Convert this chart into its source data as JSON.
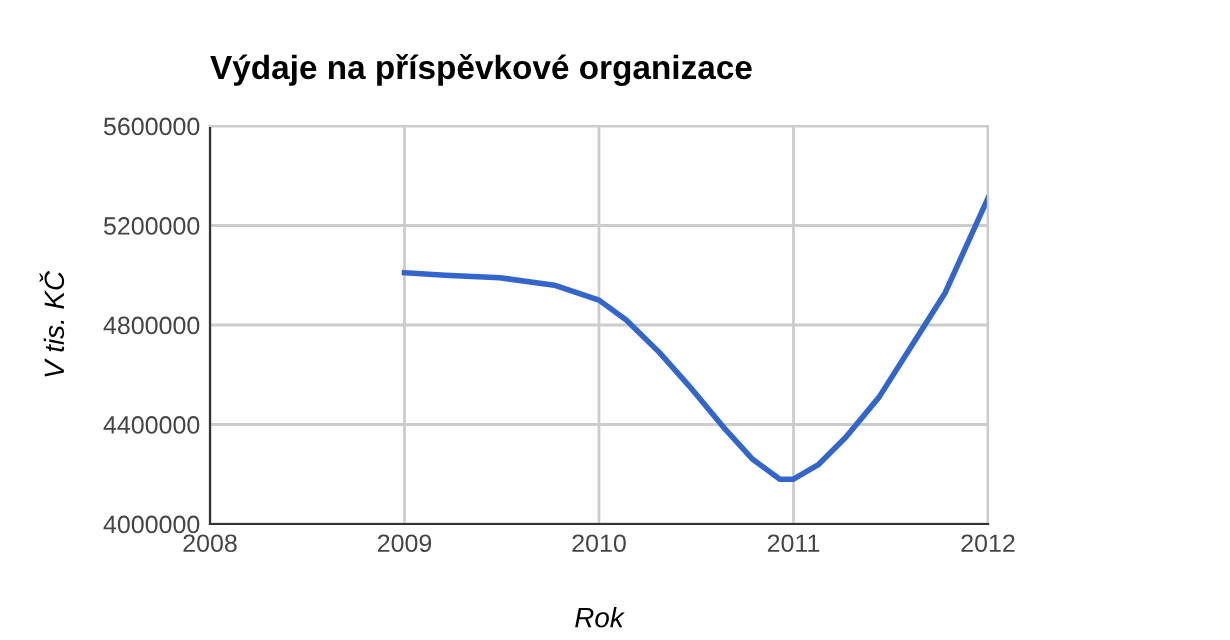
{
  "chart_data": {
    "type": "line",
    "title": "Výdaje na příspěvkové organizace",
    "xlabel": "Rok",
    "ylabel": "V tis. KČ",
    "x": [
      2009,
      2009.21,
      2009.49,
      2009.77,
      2010,
      2010.14,
      2010.31,
      2010.48,
      2010.65,
      2010.79,
      2010.93,
      2011,
      2011.13,
      2011.27,
      2011.44,
      2011.61,
      2011.78,
      2012
    ],
    "series": [
      {
        "color": "#3366cc",
        "values": [
          5010000,
          5000000,
          4990000,
          4960000,
          4900000,
          4820000,
          4690000,
          4540000,
          4380000,
          4260000,
          4180000,
          4180000,
          4240000,
          4350000,
          4510000,
          4720000,
          4930000,
          5310000
        ]
      }
    ],
    "xlim": [
      2008,
      2012
    ],
    "xticks": [
      2008,
      2009,
      2010,
      2011,
      2012
    ],
    "ylim": [
      4000000,
      5600000
    ],
    "yticks": [
      4000000,
      4400000,
      4800000,
      5200000,
      5600000
    ],
    "grid": true,
    "marker": "none",
    "line_style": "solid"
  }
}
